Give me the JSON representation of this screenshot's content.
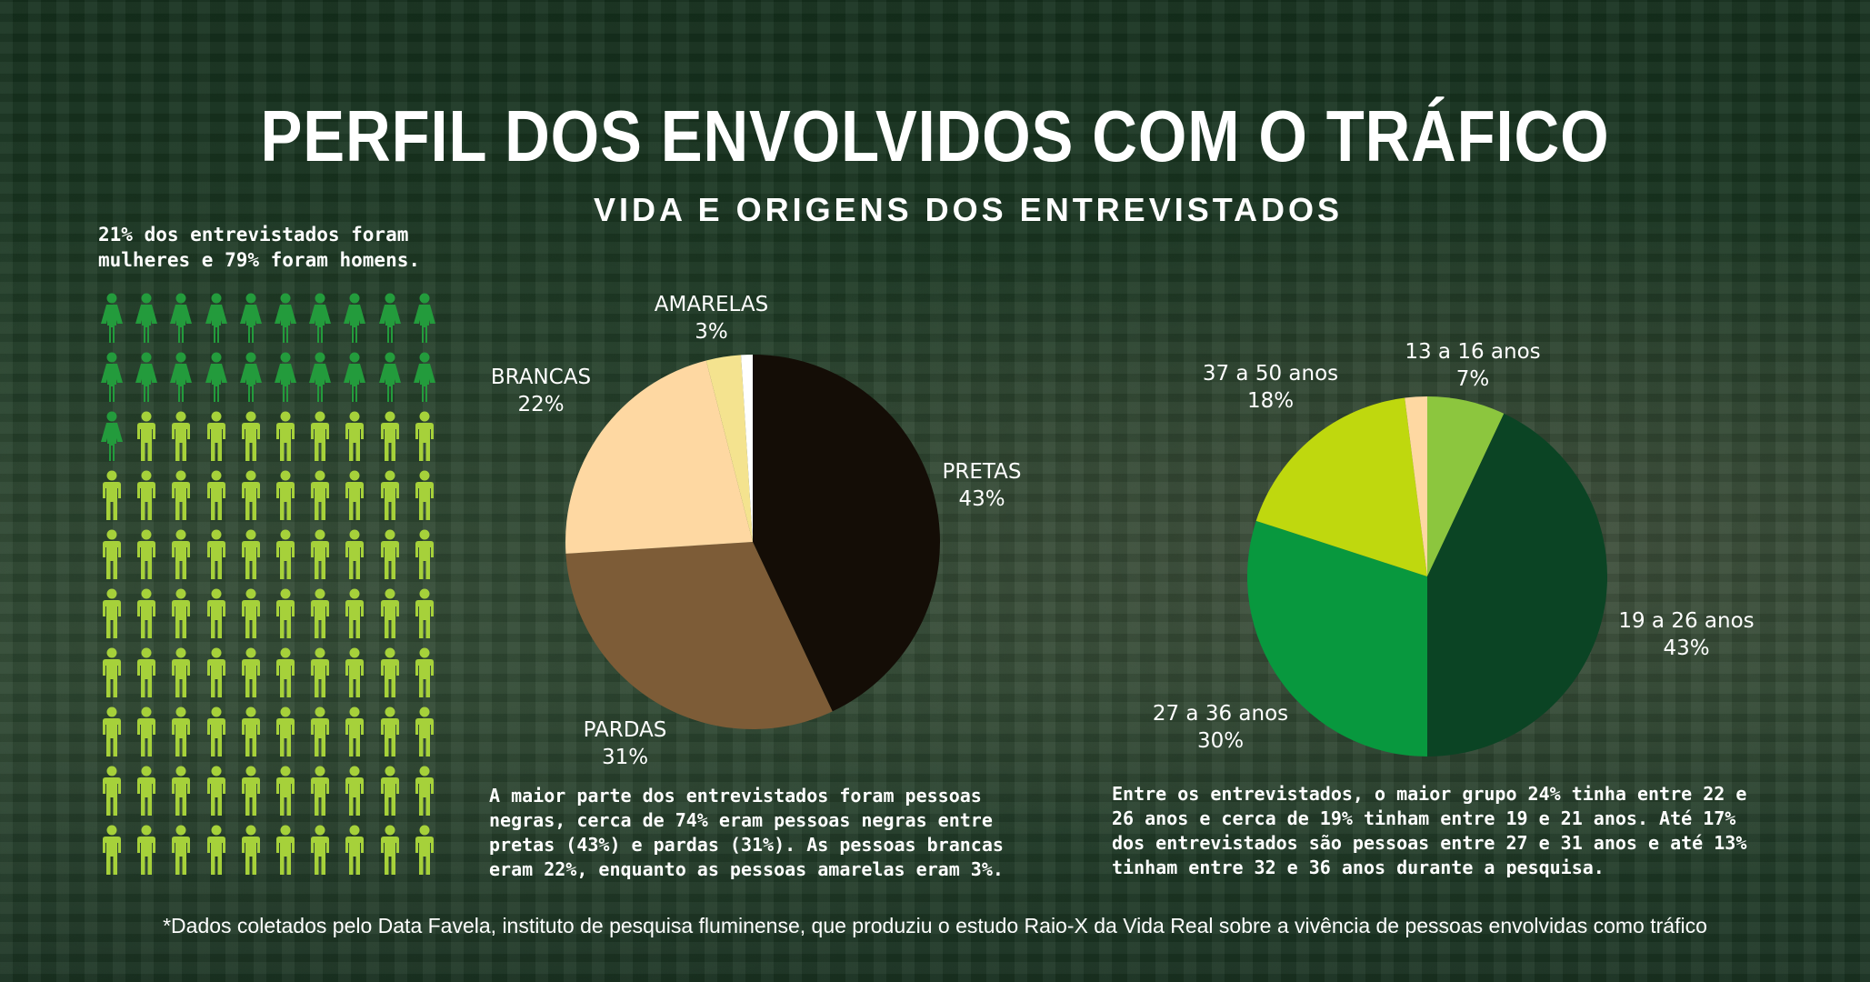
{
  "title": "PERFIL DOS ENVOLVIDOS COM O TRÁFICO",
  "subtitle": "VIDA E ORIGENS DOS ENTREVISTADOS",
  "gender": {
    "caption": "21% dos entrevistados foram mulheres e 79% foram homens.",
    "women_percent": 21,
    "men_percent": 79,
    "icon_total": 100,
    "women_icon": "female-person-icon",
    "men_icon": "male-person-icon",
    "women_color": "#239b3c",
    "men_color": "#a6d13a"
  },
  "chart_data": [
    {
      "type": "pie",
      "title": "",
      "slices": [
        {
          "label": "PRETAS",
          "value_label": "43%",
          "value": 43,
          "color": "#140d06"
        },
        {
          "label": "PARDAS",
          "value_label": "31%",
          "value": 31,
          "color": "#7d5c37"
        },
        {
          "label": "BRANCAS",
          "value_label": "22%",
          "value": 22,
          "color": "#fed8a2"
        },
        {
          "label": "AMARELAS",
          "value_label": "3%",
          "value": 3,
          "color": "#f4e38f"
        },
        {
          "label": "",
          "value_label": "",
          "value": 1,
          "color": "#ffffff"
        }
      ]
    },
    {
      "type": "pie",
      "title": "",
      "slices": [
        {
          "label": "13 a 16 anos",
          "value_label": "7%",
          "value": 7,
          "color": "#8cc63e"
        },
        {
          "label": "19 a 26 anos",
          "value_label": "43%",
          "value": 43,
          "color": "#0b4424"
        },
        {
          "label": "27 a 36 anos",
          "value_label": "30%",
          "value": 30,
          "color": "#08983e"
        },
        {
          "label": "37 a 50 anos",
          "value_label": "18%",
          "value": 18,
          "color": "#bfd80e"
        },
        {
          "label": "",
          "value_label": "",
          "value": 2,
          "color": "#fed8a2"
        }
      ]
    }
  ],
  "race_description": "A maior parte dos entrevistados foram pessoas negras, cerca de 74% eram pessoas negras entre pretas (43%) e pardas (31%). As pessoas brancas eram 22%, enquanto as pessoas amarelas eram 3%.",
  "age_description": "Entre os entrevistados, o maior grupo 24% tinha entre 22 e 26 anos e cerca de 19% tinham entre 19 e 21 anos. Até 17% dos entrevistados são pessoas entre 27 e 31 anos e até 13% tinham entre 32 e 36 anos durante a pesquisa.",
  "footnote": "*Dados coletados pelo Data Favela, instituto de pesquisa fluminense, que produziu o estudo Raio-X da Vida Real sobre a vivência de pessoas envolvidas como tráfico"
}
